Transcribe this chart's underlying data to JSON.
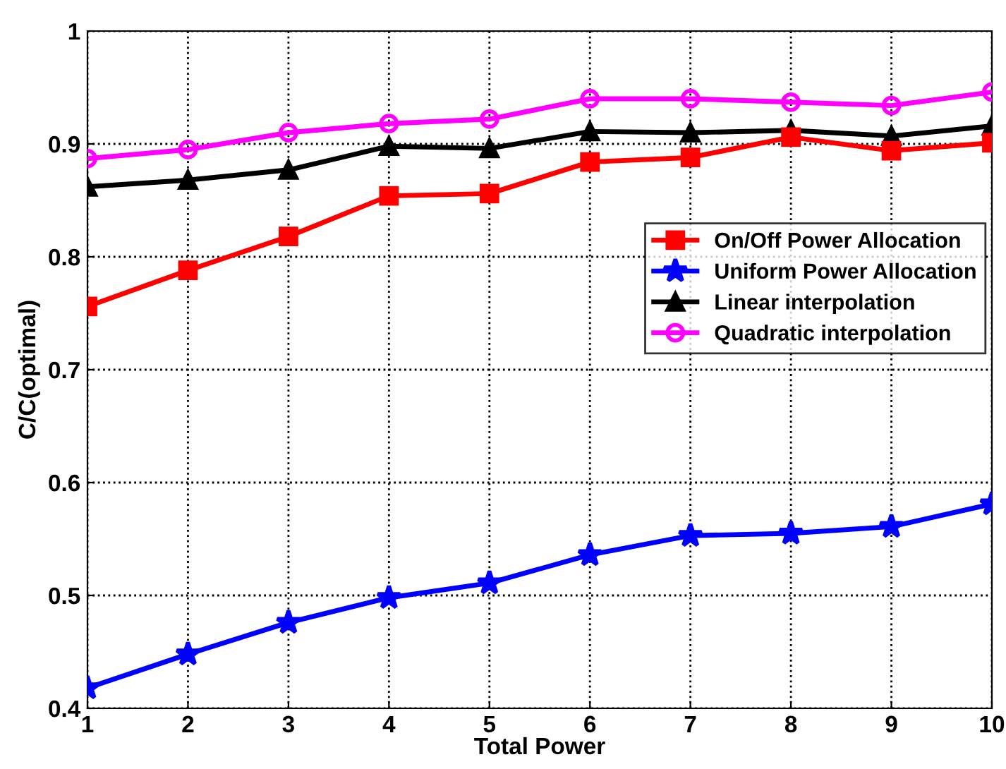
{
  "chart_data": {
    "type": "line",
    "xlabel": "Total Power",
    "ylabel": "C/C(optimal)",
    "x": [
      1,
      2,
      3,
      4,
      5,
      6,
      7,
      8,
      9,
      10
    ],
    "series": [
      {
        "name": "On/Off Power Allocation",
        "color": "#ff0000",
        "marker": "square",
        "values": [
          0.756,
          0.788,
          0.818,
          0.854,
          0.856,
          0.884,
          0.888,
          0.906,
          0.894,
          0.901
        ]
      },
      {
        "name": "Uniform Power Allocation",
        "color": "#0000ff",
        "marker": "star",
        "values": [
          0.418,
          0.448,
          0.476,
          0.498,
          0.511,
          0.536,
          0.553,
          0.555,
          0.561,
          0.581
        ]
      },
      {
        "name": "Linear interpolation",
        "color": "#000000",
        "marker": "triangle",
        "values": [
          0.862,
          0.868,
          0.877,
          0.898,
          0.896,
          0.911,
          0.91,
          0.912,
          0.907,
          0.916
        ]
      },
      {
        "name": "Quadratic interpolation",
        "color": "#ff00ff",
        "marker": "circle",
        "values": [
          0.887,
          0.895,
          0.91,
          0.918,
          0.922,
          0.94,
          0.94,
          0.937,
          0.934,
          0.946
        ]
      }
    ],
    "xlim": [
      1,
      10
    ],
    "ylim": [
      0.4,
      1.0
    ],
    "xticks": [
      1,
      2,
      3,
      4,
      5,
      6,
      7,
      8,
      9,
      10
    ],
    "yticks": [
      0.4,
      0.5,
      0.6,
      0.7,
      0.8,
      0.9,
      1
    ],
    "grid": true,
    "legend": "right",
    "line_style": "solid"
  }
}
